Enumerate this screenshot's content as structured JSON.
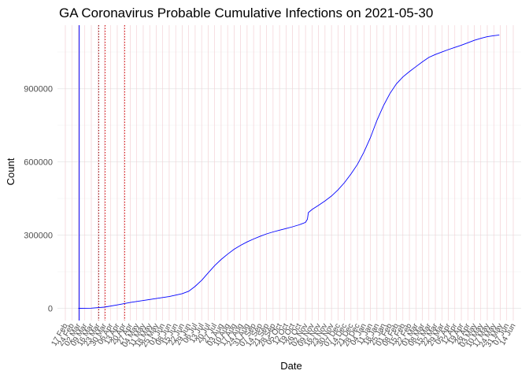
{
  "chart_data": {
    "type": "line",
    "title": "GA Coronavirus Probable Cumulative Infections on 2021-05-30",
    "xlabel": "Date",
    "ylabel": "Count",
    "x_range": [
      "2020-02-17",
      "2021-06-14"
    ],
    "ylim": [
      -50000,
      1160000
    ],
    "y_ticks": [
      0,
      300000,
      600000,
      900000
    ],
    "x_tick_labels": [
      "17 Feb",
      "24 Feb",
      "02 Mar",
      "09 Mar",
      "16 Mar",
      "23 Mar",
      "30 Mar",
      "06 Apr",
      "13 Apr",
      "20 Apr",
      "27 Apr",
      "04 May",
      "11 May",
      "18 May",
      "25 May",
      "01 Jun",
      "08 Jun",
      "15 Jun",
      "22 Jun",
      "29 Jun",
      "06 Jul",
      "13 Jul",
      "20 Jul",
      "27 Jul",
      "03 Aug",
      "10 Aug",
      "17 Aug",
      "24 Aug",
      "31 Aug",
      "07 Sep",
      "14 Sep",
      "21 Sep",
      "28 Sep",
      "05 Oct",
      "12 Oct",
      "19 Oct",
      "26 Oct",
      "02 Nov",
      "09 Nov",
      "16 Nov",
      "23 Nov",
      "30 Nov",
      "07 Dec",
      "14 Dec",
      "21 Dec",
      "28 Dec",
      "04 Jan",
      "11 Jan",
      "18 Jan",
      "25 Jan",
      "01 Feb",
      "08 Feb",
      "15 Feb",
      "22 Feb",
      "01 Mar",
      "08 Mar",
      "15 Mar",
      "22 Mar",
      "29 Mar",
      "05 Apr",
      "12 Apr",
      "19 Apr",
      "26 Apr",
      "03 May",
      "10 May",
      "17 May",
      "24 May",
      "31 May",
      "07 Jun",
      "14 Jun"
    ],
    "grid": true,
    "series": [
      {
        "color": "#0000ff",
        "points": [
          [
            "2020-03-02",
            0
          ],
          [
            "2020-03-16",
            500
          ],
          [
            "2020-03-30",
            5000
          ],
          [
            "2020-04-13",
            14000
          ],
          [
            "2020-04-27",
            24000
          ],
          [
            "2020-05-11",
            32000
          ],
          [
            "2020-05-25",
            40000
          ],
          [
            "2020-06-08",
            48000
          ],
          [
            "2020-06-22",
            60000
          ],
          [
            "2020-06-29",
            70000
          ],
          [
            "2020-07-06",
            90000
          ],
          [
            "2020-07-13",
            115000
          ],
          [
            "2020-07-20",
            145000
          ],
          [
            "2020-07-27",
            175000
          ],
          [
            "2020-08-03",
            200000
          ],
          [
            "2020-08-10",
            222000
          ],
          [
            "2020-08-17",
            242000
          ],
          [
            "2020-08-24",
            258000
          ],
          [
            "2020-08-31",
            272000
          ],
          [
            "2020-09-07",
            284000
          ],
          [
            "2020-09-14",
            295000
          ],
          [
            "2020-09-21",
            305000
          ],
          [
            "2020-09-28",
            313000
          ],
          [
            "2020-10-05",
            320000
          ],
          [
            "2020-10-12",
            327000
          ],
          [
            "2020-10-19",
            334000
          ],
          [
            "2020-10-26",
            342000
          ],
          [
            "2020-11-02",
            352000
          ],
          [
            "2020-11-04",
            365000
          ],
          [
            "2020-11-05",
            392000
          ],
          [
            "2020-11-09",
            405000
          ],
          [
            "2020-11-16",
            422000
          ],
          [
            "2020-11-23",
            440000
          ],
          [
            "2020-11-30",
            460000
          ],
          [
            "2020-12-07",
            485000
          ],
          [
            "2020-12-14",
            515000
          ],
          [
            "2020-12-21",
            550000
          ],
          [
            "2020-12-28",
            590000
          ],
          [
            "2021-01-04",
            640000
          ],
          [
            "2021-01-11",
            700000
          ],
          [
            "2021-01-18",
            770000
          ],
          [
            "2021-01-25",
            830000
          ],
          [
            "2021-02-01",
            880000
          ],
          [
            "2021-02-08",
            920000
          ],
          [
            "2021-02-15",
            948000
          ],
          [
            "2021-02-22",
            970000
          ],
          [
            "2021-03-01",
            990000
          ],
          [
            "2021-03-08",
            1010000
          ],
          [
            "2021-03-15",
            1028000
          ],
          [
            "2021-03-22",
            1040000
          ],
          [
            "2021-03-29",
            1050000
          ],
          [
            "2021-04-05",
            1060000
          ],
          [
            "2021-04-12",
            1069000
          ],
          [
            "2021-04-19",
            1078000
          ],
          [
            "2021-04-26",
            1088000
          ],
          [
            "2021-05-03",
            1098000
          ],
          [
            "2021-05-10",
            1106000
          ],
          [
            "2021-05-17",
            1113000
          ],
          [
            "2021-05-24",
            1117000
          ],
          [
            "2021-05-30",
            1120000
          ]
        ]
      }
    ],
    "annotations": [
      {
        "style": "solid",
        "color": "#0000ff",
        "x": "2020-03-03"
      },
      {
        "style": "dotted",
        "color": "#8b0000",
        "x": "2020-03-24"
      },
      {
        "style": "dotted",
        "color": "#cc0000",
        "x": "2020-03-31"
      },
      {
        "style": "dotted",
        "color": "#cc0000",
        "x": "2020-04-21"
      }
    ],
    "pink_lines": [
      "2020-02-17",
      "2020-02-24",
      "2020-03-02",
      "2020-03-09",
      "2020-03-16",
      "2020-03-23",
      "2020-03-30",
      "2020-04-06",
      "2020-04-13",
      "2020-04-20",
      "2020-04-27",
      "2020-05-04",
      "2020-05-11",
      "2020-05-18",
      "2020-05-25",
      "2020-06-01",
      "2020-06-08",
      "2020-06-15",
      "2020-06-22",
      "2020-06-29",
      "2020-07-06",
      "2020-07-13",
      "2020-07-20",
      "2020-07-27",
      "2020-08-03",
      "2020-08-10",
      "2020-08-17",
      "2020-08-24",
      "2020-08-31",
      "2020-09-07",
      "2020-09-14",
      "2020-09-21",
      "2020-09-28",
      "2020-10-05",
      "2020-10-12",
      "2020-10-19",
      "2020-10-26",
      "2020-11-02",
      "2020-11-09",
      "2020-11-16",
      "2020-11-23",
      "2020-11-30",
      "2020-12-07",
      "2020-12-14",
      "2020-12-21",
      "2020-12-28",
      "2021-01-04",
      "2021-01-11",
      "2021-01-18",
      "2021-01-25",
      "2021-02-01",
      "2021-02-08",
      "2021-02-15",
      "2021-02-22",
      "2021-03-01",
      "2021-03-08",
      "2021-03-15",
      "2021-03-22",
      "2021-03-29",
      "2021-04-05",
      "2021-04-12",
      "2021-04-19",
      "2021-04-26",
      "2021-05-03",
      "2021-05-10",
      "2021-05-17",
      "2021-05-24",
      "2021-05-31",
      "2021-06-07",
      "2021-06-14"
    ]
  }
}
